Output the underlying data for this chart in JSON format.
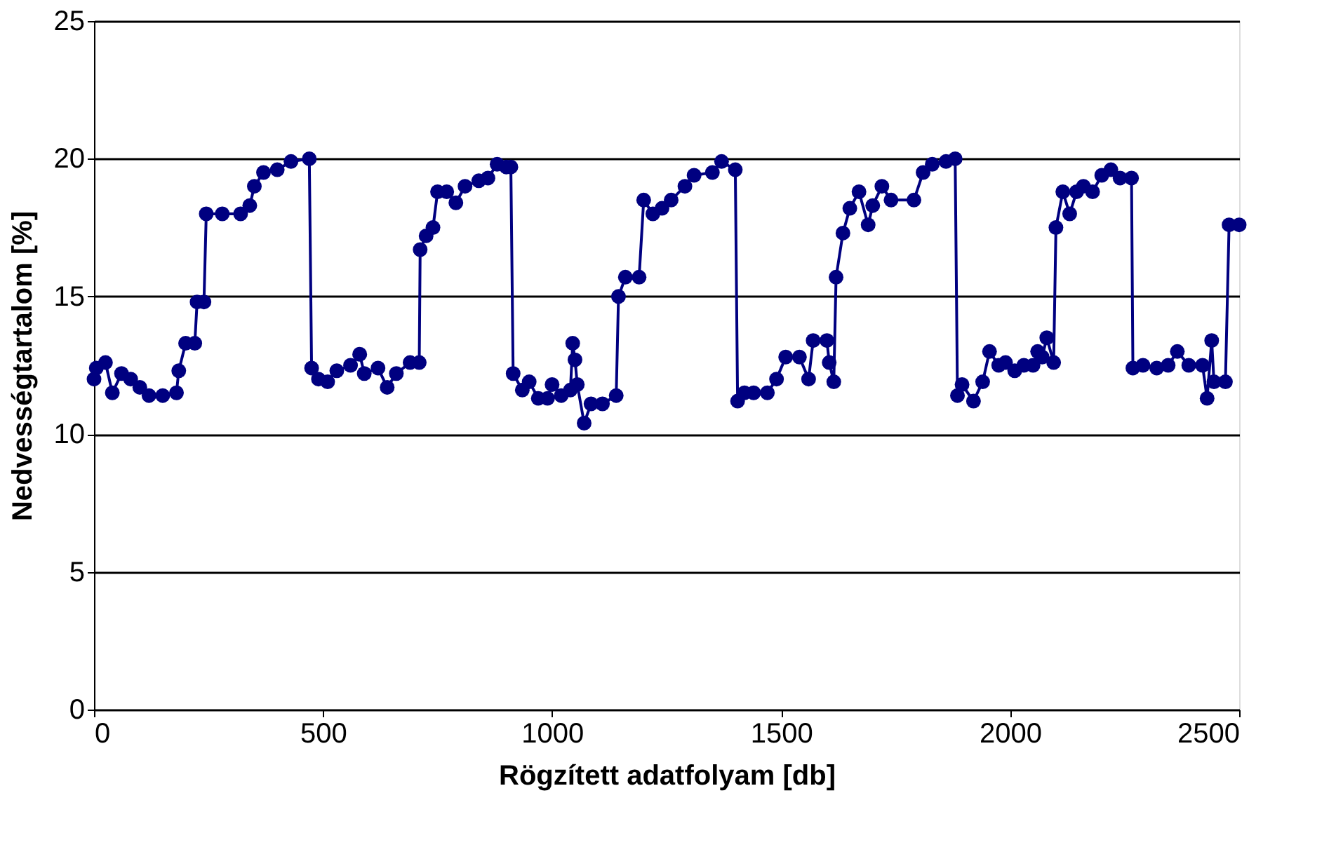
{
  "chart_data": {
    "type": "line",
    "xlabel": "Rögzített adatfolyam [db]",
    "ylabel": "Nedvességtartalom  [%]",
    "xlim": [
      0,
      2500
    ],
    "xticks": [
      0,
      500,
      1000,
      1500,
      2000,
      2500
    ],
    "ylim": [
      0,
      25
    ],
    "yticks": [
      0,
      5,
      10,
      15,
      20,
      25
    ],
    "grid": "y",
    "marker": "circle",
    "line_style": "solid",
    "series": [
      {
        "color": "#000080",
        "x": [
          0,
          5,
          25,
          40,
          60,
          80,
          100,
          120,
          150,
          180,
          185,
          200,
          220,
          225,
          240,
          245,
          280,
          320,
          340,
          350,
          370,
          400,
          430,
          470,
          475,
          490,
          510,
          530,
          560,
          580,
          590,
          620,
          640,
          660,
          690,
          710,
          712,
          725,
          740,
          750,
          770,
          790,
          810,
          840,
          860,
          880,
          900,
          910,
          915,
          935,
          950,
          970,
          990,
          1000,
          1020,
          1040,
          1045,
          1050,
          1055,
          1070,
          1085,
          1110,
          1140,
          1145,
          1160,
          1190,
          1200,
          1220,
          1240,
          1260,
          1290,
          1310,
          1350,
          1370,
          1400,
          1405,
          1420,
          1440,
          1470,
          1490,
          1510,
          1540,
          1560,
          1570,
          1600,
          1605,
          1615,
          1620,
          1635,
          1650,
          1670,
          1690,
          1700,
          1720,
          1740,
          1790,
          1810,
          1830,
          1860,
          1880,
          1885,
          1895,
          1920,
          1940,
          1955,
          1975,
          1990,
          2010,
          2030,
          2050,
          2060,
          2070,
          2080,
          2095,
          2100,
          2115,
          2130,
          2145,
          2160,
          2180,
          2200,
          2220,
          2240,
          2265,
          2268,
          2290,
          2320,
          2345,
          2365,
          2390,
          2420,
          2430,
          2440,
          2445,
          2470,
          2478,
          2500
        ],
        "values": [
          12.0,
          12.4,
          12.6,
          11.5,
          12.2,
          12.0,
          11.7,
          11.4,
          11.4,
          11.5,
          12.3,
          13.3,
          13.3,
          14.8,
          14.8,
          18.0,
          18.0,
          18.0,
          18.3,
          19.0,
          19.5,
          19.6,
          19.9,
          20.0,
          12.4,
          12.0,
          11.9,
          12.3,
          12.5,
          12.9,
          12.2,
          12.4,
          11.7,
          12.2,
          12.6,
          12.6,
          16.7,
          17.2,
          17.5,
          18.8,
          18.8,
          18.4,
          19.0,
          19.2,
          19.3,
          19.8,
          19.7,
          19.7,
          12.2,
          11.6,
          11.9,
          11.3,
          11.3,
          11.8,
          11.4,
          11.6,
          13.3,
          12.7,
          11.8,
          10.4,
          11.1,
          11.1,
          11.4,
          15.0,
          15.7,
          15.7,
          18.5,
          18.0,
          18.2,
          18.5,
          19.0,
          19.4,
          19.5,
          19.9,
          19.6,
          11.2,
          11.5,
          11.5,
          11.5,
          12.0,
          12.8,
          12.8,
          12.0,
          13.4,
          13.4,
          12.6,
          11.9,
          15.7,
          17.3,
          18.2,
          18.8,
          17.6,
          18.3,
          19.0,
          18.5,
          18.5,
          19.5,
          19.8,
          19.9,
          20.0,
          11.4,
          11.8,
          11.2,
          11.9,
          13.0,
          12.5,
          12.6,
          12.3,
          12.5,
          12.5,
          13.0,
          12.8,
          13.5,
          12.6,
          17.5,
          18.8,
          18.0,
          18.8,
          19.0,
          18.8,
          19.4,
          19.6,
          19.3,
          19.3,
          12.4,
          12.5,
          12.4,
          12.5,
          13.0,
          12.5,
          12.5,
          11.3,
          13.4,
          11.9,
          11.9,
          17.6,
          17.6
        ]
      }
    ]
  }
}
